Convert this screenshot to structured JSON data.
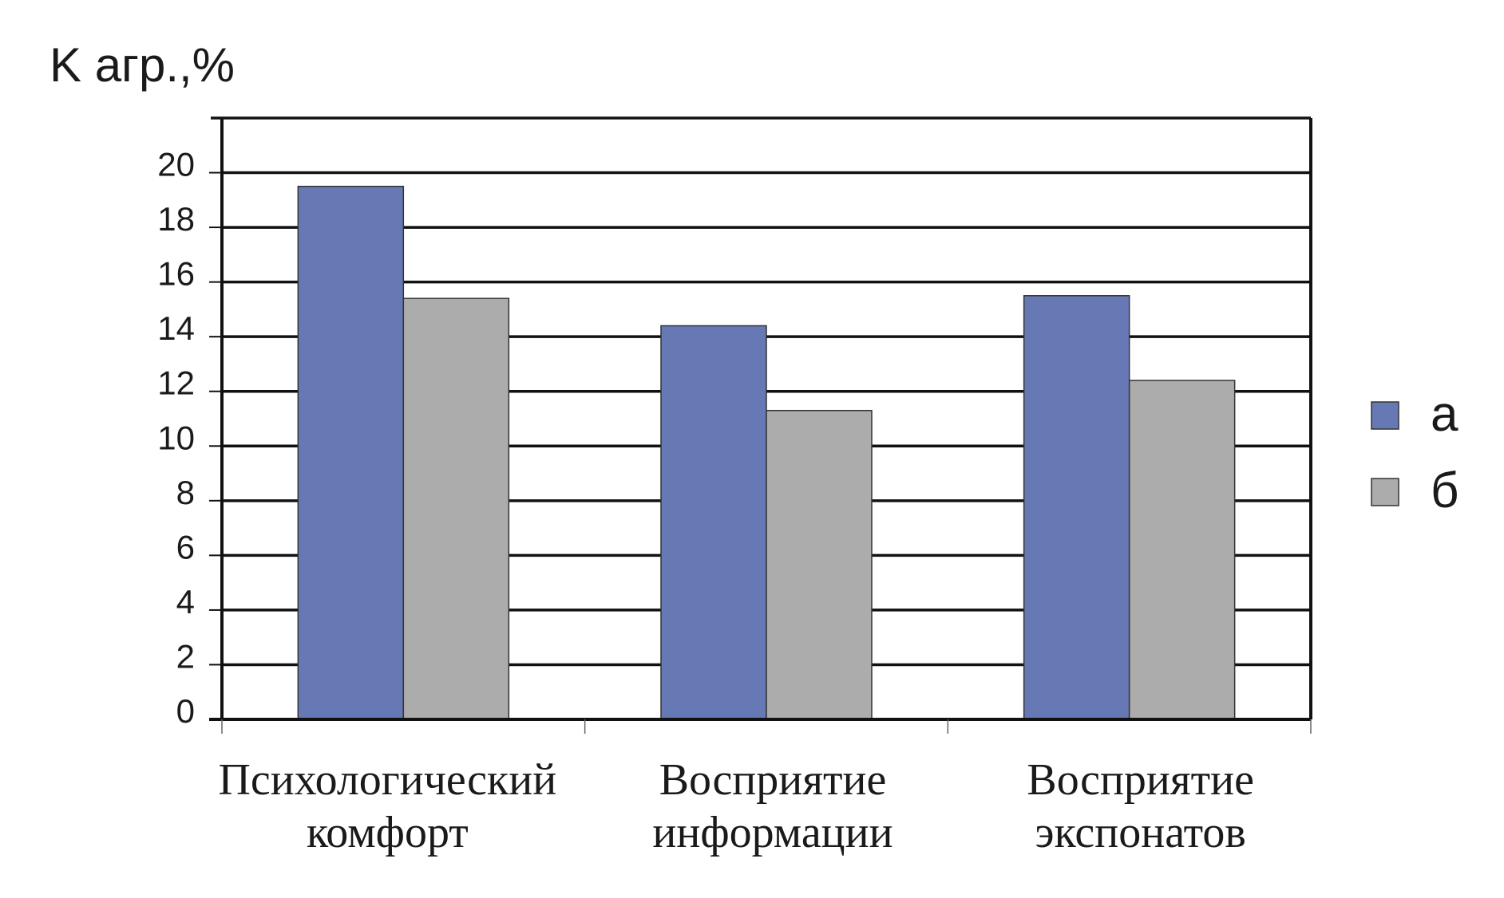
{
  "chart_data": {
    "type": "bar",
    "ylabel": "K агр.,%",
    "xlabel": "",
    "ylim": [
      0,
      22
    ],
    "yticks": [
      0,
      2,
      4,
      6,
      8,
      10,
      12,
      14,
      16,
      18,
      20
    ],
    "grid": true,
    "legend_position": "right",
    "categories": [
      [
        "Психологический",
        "комфорт"
      ],
      [
        "Восприятие",
        "информации"
      ],
      [
        "Восприятие",
        "экспонатов"
      ]
    ],
    "series": [
      {
        "name": "а",
        "values": [
          19.5,
          14.4,
          15.5
        ],
        "color": "#6779b4"
      },
      {
        "name": "б",
        "values": [
          15.4,
          11.3,
          12.4
        ],
        "color": "#acacac"
      }
    ]
  }
}
